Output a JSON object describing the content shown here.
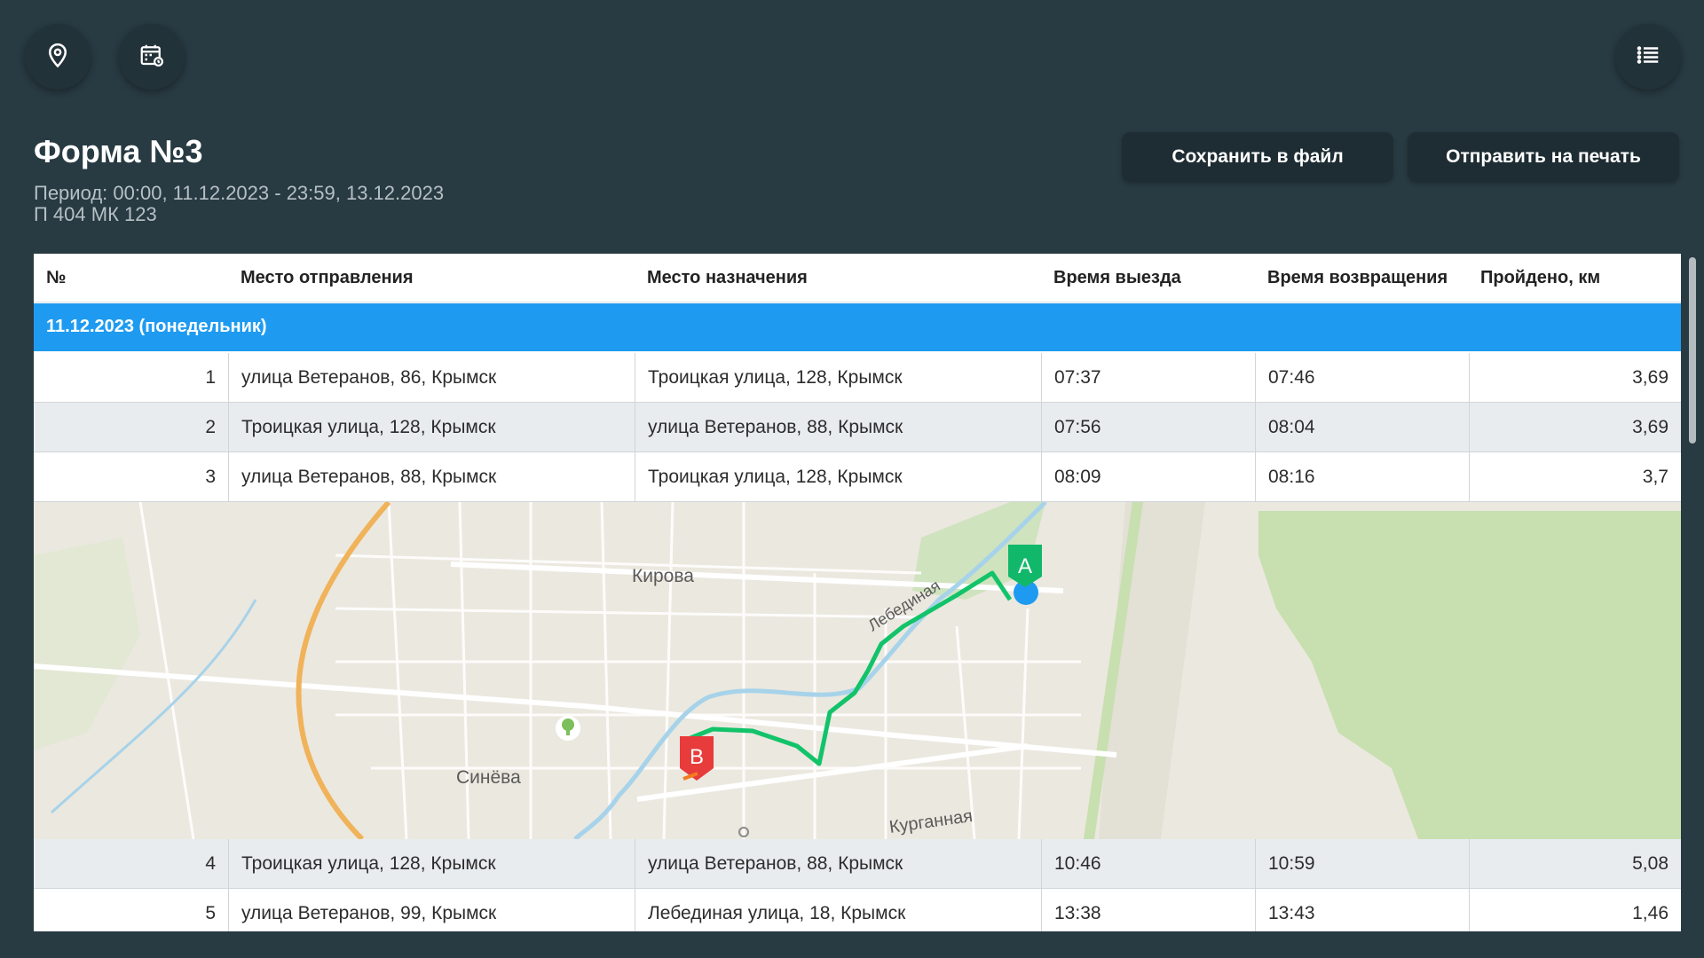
{
  "toolbar": {
    "location_icon": "map-pin-icon",
    "calendar_icon": "calendar-icon",
    "menu_icon": "list-icon"
  },
  "report": {
    "title": "Форма №3",
    "period": "Период: 00:00, 11.12.2023 - 23:59, 13.12.2023",
    "vehicle": "П 404 МК 123"
  },
  "actions": {
    "save_label": "Сохранить в файл",
    "print_label": "Отправить на печать"
  },
  "table": {
    "columns": [
      "№",
      "Место отправления",
      "Место назначения",
      "Время выезда",
      "Время возвращения",
      "Пройдено, км"
    ],
    "group_label": "11.12.2023 (понедельник)",
    "rows": [
      {
        "num": "1",
        "from": "улица Ветеранов, 86, Крымск",
        "to": "Троицкая улица, 128, Крымск",
        "dep": "07:37",
        "ret": "07:46",
        "km": "3,69"
      },
      {
        "num": "2",
        "from": "Троицкая улица, 128, Крымск",
        "to": "улица Ветеранов, 88, Крымск",
        "dep": "07:56",
        "ret": "08:04",
        "km": "3,69"
      },
      {
        "num": "3",
        "from": "улица Ветеранов, 88, Крымск",
        "to": "Троицкая улица, 128, Крымск",
        "dep": "08:09",
        "ret": "08:16",
        "km": "3,7"
      },
      {
        "num": "4",
        "from": "Троицкая улица, 128, Крымск",
        "to": "улица Ветеранов, 88, Крымск",
        "dep": "10:46",
        "ret": "10:59",
        "km": "5,08"
      },
      {
        "num": "5",
        "from": "улица Ветеранов, 99, Крымск",
        "to": "Лебединая улица, 18, Крымск",
        "dep": "13:38",
        "ret": "13:43",
        "km": "1,46"
      }
    ]
  },
  "map": {
    "labels": {
      "kirova": "Кирова",
      "lebedinaya": "Лебединая",
      "sineva": "Синёва",
      "kurgannaya": "Курганная"
    },
    "marker_a": "A",
    "marker_b": "B",
    "route_color": "#12c36a",
    "marker_a_color": "#12b86a",
    "marker_b_color": "#e83b3b"
  },
  "colors": {
    "background": "#283a42",
    "group_header": "#1e9bf0"
  }
}
